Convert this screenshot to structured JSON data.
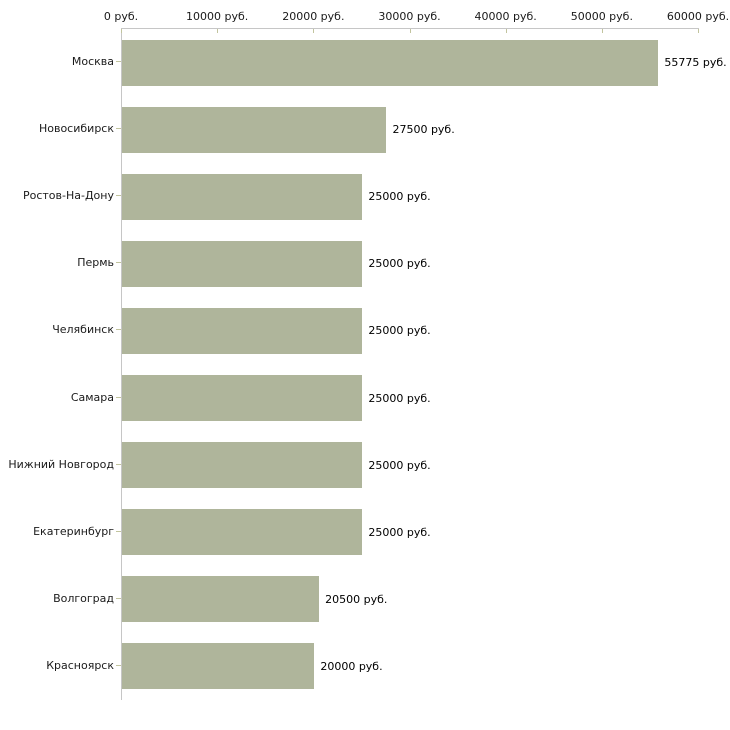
{
  "chart_data": {
    "type": "bar",
    "orientation": "horizontal",
    "title": "",
    "xlabel": "",
    "ylabel": "",
    "categories": [
      "Москва",
      "Новосибирск",
      "Ростов-На-Дону",
      "Пермь",
      "Челябинск",
      "Самара",
      "Нижний Новгород",
      "Екатеринбург",
      "Волгоград",
      "Красноярск"
    ],
    "values": [
      55775,
      27500,
      25000,
      25000,
      25000,
      25000,
      25000,
      25000,
      20500,
      20000
    ],
    "value_labels": [
      "55775 руб.",
      "27500 руб.",
      "25000 руб.",
      "25000 руб.",
      "25000 руб.",
      "25000 руб.",
      "25000 руб.",
      "25000 руб.",
      "20500 руб.",
      "20000 руб."
    ],
    "x_tick_labels": [
      "0 руб.",
      "10000 руб.",
      "20000 руб.",
      "30000 руб.",
      "40000 руб.",
      "50000 руб.",
      "60000 руб."
    ],
    "x_tick_values": [
      0,
      10000,
      20000,
      30000,
      40000,
      50000,
      60000
    ],
    "xlim": [
      0,
      60000
    ],
    "grid": "off",
    "legend": "none",
    "colors": {
      "bar": "#afb59b",
      "axis": "#c6c6c6",
      "tick": "#c2c49e",
      "text": "#1a1a1a",
      "background": "#ffffff"
    }
  }
}
